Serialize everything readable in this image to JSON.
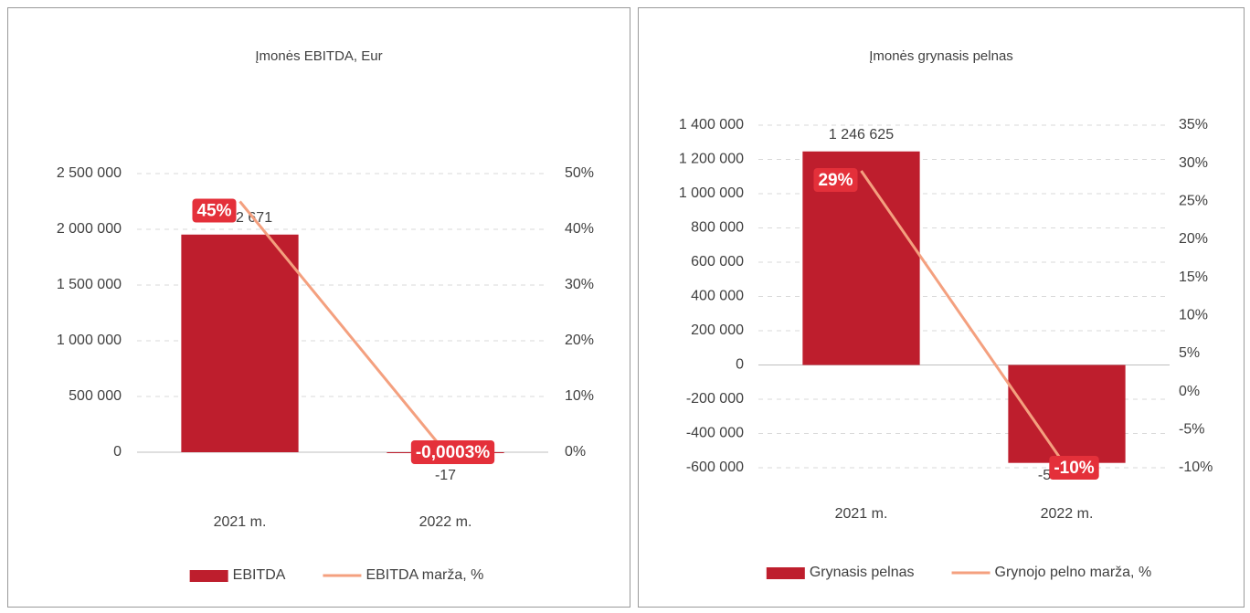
{
  "chart_data": [
    {
      "type": "bar",
      "title": "Įmonės EBITDA, Eur",
      "categories": [
        "2021 m.",
        "2022 m."
      ],
      "series": [
        {
          "name": "EBITDA",
          "type": "bar",
          "color": "#be1e2d",
          "values": [
            1952671,
            -17
          ],
          "value_labels": [
            "1 952 671",
            "-17"
          ]
        },
        {
          "name": "EBITDA marža, %",
          "type": "line",
          "axis": "y2",
          "color": "#f4a07f",
          "values": [
            45,
            -0.0003
          ],
          "value_labels": [
            "45%",
            "-0,0003%"
          ]
        }
      ],
      "ylim": [
        0,
        2500000
      ],
      "yticks": [
        0,
        {
          "value": 500000,
          "label": "500 000"
        },
        {
          "value": 1000000,
          "label": "1 000 000"
        },
        {
          "value": 1500000,
          "label": "1 500 000"
        },
        {
          "value": 2000000,
          "label": "2 000 000"
        },
        {
          "value": 2500000,
          "label": "2 500 000"
        }
      ],
      "y2lim": [
        0,
        50
      ],
      "y2ticks": [
        {
          "value": 0,
          "label": "0%"
        },
        {
          "value": 10,
          "label": "10%"
        },
        {
          "value": 20,
          "label": "20%"
        },
        {
          "value": 30,
          "label": "30%"
        },
        {
          "value": 40,
          "label": "40%"
        },
        {
          "value": 50,
          "label": "50%"
        }
      ],
      "grid": true,
      "legend": "bottom"
    },
    {
      "type": "bar",
      "title": "Įmonės grynasis pelnas",
      "categories": [
        "2021 m.",
        "2022 m."
      ],
      "series": [
        {
          "name": "Grynasis pelnas",
          "type": "bar",
          "color": "#be1e2d",
          "values": [
            1246625,
            -571688
          ],
          "value_labels": [
            "1 246 625",
            "-571 688"
          ]
        },
        {
          "name": "Grynojo pelno marža, %",
          "type": "line",
          "axis": "y2",
          "color": "#f4a07f",
          "values": [
            29,
            -10
          ],
          "value_labels": [
            "29%",
            "-10%"
          ]
        }
      ],
      "ylim": [
        -600000,
        1400000
      ],
      "yticks": [
        {
          "value": -600000,
          "label": "-600 000"
        },
        {
          "value": -400000,
          "label": "-400 000"
        },
        {
          "value": -200000,
          "label": "-200 000"
        },
        0,
        {
          "value": 200000,
          "label": "200 000"
        },
        {
          "value": 400000,
          "label": "400 000"
        },
        {
          "value": 600000,
          "label": "600 000"
        },
        {
          "value": 800000,
          "label": "800 000"
        },
        {
          "value": 1000000,
          "label": "1 000 000"
        },
        {
          "value": 1200000,
          "label": "1 200 000"
        },
        {
          "value": 1400000,
          "label": "1 400 000"
        }
      ],
      "y2lim": [
        -10,
        35
      ],
      "y2ticks": [
        {
          "value": -10,
          "label": "-10%"
        },
        {
          "value": -5,
          "label": "-5%"
        },
        {
          "value": 0,
          "label": "0%"
        },
        {
          "value": 5,
          "label": "5%"
        },
        {
          "value": 10,
          "label": "10%"
        },
        {
          "value": 15,
          "label": "15%"
        },
        {
          "value": 20,
          "label": "20%"
        },
        {
          "value": 25,
          "label": "25%"
        },
        {
          "value": 30,
          "label": "30%"
        },
        {
          "value": 35,
          "label": "35%"
        }
      ],
      "grid": true,
      "legend": "bottom"
    }
  ]
}
